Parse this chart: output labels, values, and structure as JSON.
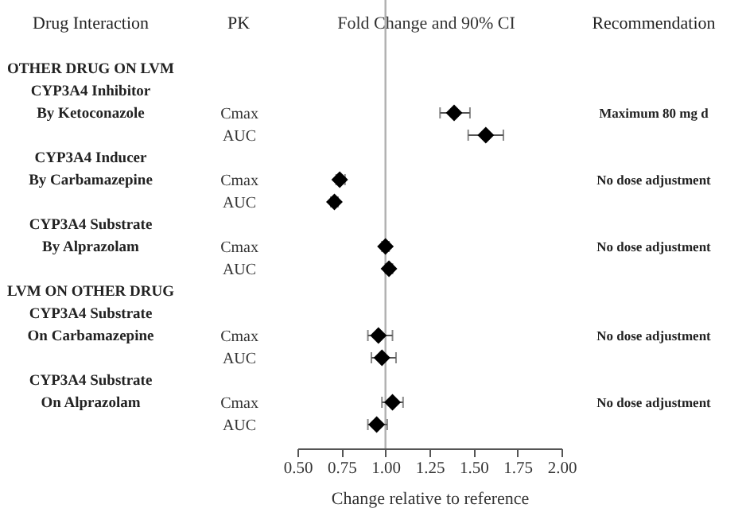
{
  "chart_data": {
    "type": "scatter",
    "orientation": "horizontal",
    "title": "Fold Change and 90% CI",
    "xlabel": "Change relative to reference",
    "categories": [
      null,
      null,
      "Cmax",
      "AUC",
      null,
      "Cmax",
      "AUC",
      null,
      "Cmax",
      "AUC",
      null,
      null,
      "Cmax",
      "AUC",
      null,
      "Cmax",
      "AUC"
    ],
    "values": [
      null,
      null,
      1.39,
      1.57,
      null,
      0.74,
      0.71,
      null,
      1.0,
      1.02,
      null,
      null,
      0.96,
      0.98,
      null,
      1.04,
      0.95
    ],
    "errors": [
      null,
      null,
      [
        1.31,
        1.48
      ],
      [
        1.47,
        1.67
      ],
      null,
      [
        0.72,
        0.77
      ],
      [
        0.69,
        0.73
      ],
      null,
      [
        0.98,
        1.02
      ],
      [
        1.0,
        1.04
      ],
      null,
      null,
      [
        0.9,
        1.04
      ],
      [
        0.92,
        1.06
      ],
      null,
      [
        0.98,
        1.1
      ],
      [
        0.9,
        1.01
      ]
    ],
    "color": "#000000",
    "marker": "diamond",
    "xlim": [
      0.5,
      2.0
    ],
    "xticks": [
      {
        "value": 0.5,
        "label": "0.50"
      },
      {
        "value": 0.75,
        "label": "0.75"
      },
      {
        "value": 1.0,
        "label": "1.00"
      },
      {
        "value": 1.25,
        "label": "1.25"
      },
      {
        "value": 1.5,
        "label": "1.50"
      },
      {
        "value": 1.75,
        "label": "1.75"
      },
      {
        "value": 2.0,
        "label": "2.00"
      }
    ],
    "ref_lines": [
      {
        "axis": "x",
        "value": 1.0,
        "color": "#b0b0b0"
      }
    ],
    "annotations": [
      "Drug Interaction",
      "PK",
      "Recommendation",
      "OTHER DRUG ON LVM",
      "CYP3A4 Inhibitor",
      "By Ketoconazole",
      "CYP3A4 Inducer",
      "By Carbamazepine",
      "CYP3A4 Substrate",
      "By Alprazolam",
      "LVM ON OTHER DRUG",
      "CYP3A4 Substrate",
      "On Carbamazepine",
      "CYP3A4 Substrate",
      "On Alprazolam",
      "Maximum 80 mg d",
      "No dose adjustment",
      "No dose adjustment",
      "No dose adjustment",
      "No dose adjustment"
    ]
  }
}
